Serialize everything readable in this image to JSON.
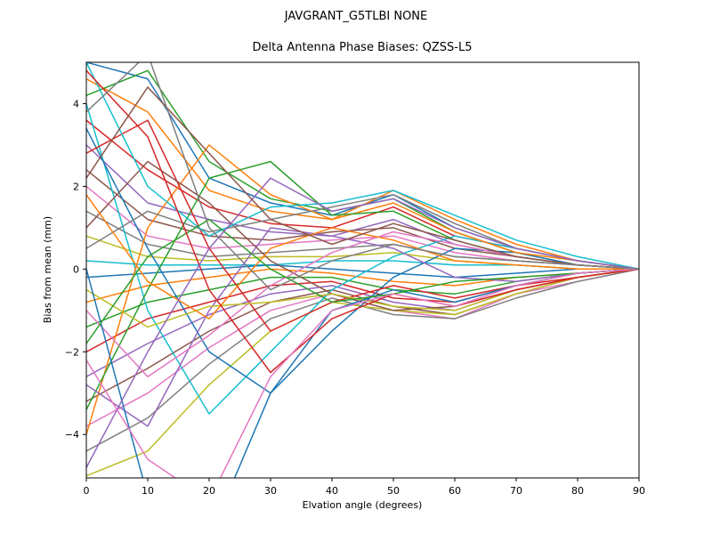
{
  "figure": {
    "suptitle": "JAVGRANT_G5TLBI NONE",
    "axes_title": "Delta Antenna Phase Biases: QZSS-L5"
  },
  "chart_data": {
    "type": "line",
    "suptitle": "JAVGRANT_G5TLBI NONE",
    "title": "Delta Antenna Phase Biases: QZSS-L5",
    "xlabel": "Elvation angle (degrees)",
    "ylabel": "Bias from mean (mm)",
    "xlim": [
      0,
      90
    ],
    "ylim": [
      -5.05,
      5.0
    ],
    "xticks": [
      0,
      10,
      20,
      30,
      40,
      50,
      60,
      70,
      80,
      90
    ],
    "xtick_labels": [
      "0",
      "10",
      "20",
      "30",
      "40",
      "50",
      "60",
      "70",
      "80",
      "90"
    ],
    "yticks": [
      -4,
      -2,
      0,
      2,
      4
    ],
    "ytick_labels": [
      "−4",
      "−2",
      "0",
      "2",
      "4"
    ],
    "grid": false,
    "legend": "none",
    "line_width": 1.5,
    "palette": [
      "#1f77b4",
      "#ff7f0e",
      "#2ca02c",
      "#d62728",
      "#9467bd",
      "#8c564b",
      "#e377c2",
      "#7f7f7f",
      "#bcbd22",
      "#17becf"
    ],
    "x": [
      0,
      10,
      20,
      30,
      40,
      50,
      60,
      70,
      80,
      90
    ],
    "series": [
      [
        5.0,
        4.6,
        2.2,
        1.6,
        1.3,
        1.8,
        1.0,
        0.5,
        0.2,
        0.0
      ],
      [
        4.6,
        3.8,
        1.9,
        1.4,
        1.2,
        1.9,
        1.2,
        0.6,
        0.2,
        0.0
      ],
      [
        4.2,
        4.8,
        2.6,
        1.7,
        1.4,
        1.7,
        0.9,
        0.4,
        0.1,
        0.0
      ],
      [
        3.6,
        2.4,
        1.5,
        1.1,
        1.0,
        1.5,
        0.8,
        0.5,
        0.2,
        0.0
      ],
      [
        3.0,
        1.6,
        1.2,
        0.9,
        0.8,
        1.2,
        0.6,
        0.3,
        0.1,
        0.0
      ],
      [
        2.4,
        1.2,
        0.8,
        0.7,
        0.9,
        1.0,
        0.5,
        0.3,
        0.1,
        0.0
      ],
      [
        2.0,
        0.8,
        0.5,
        0.6,
        0.7,
        0.8,
        0.4,
        0.2,
        0.1,
        0.0
      ],
      [
        1.4,
        0.6,
        0.3,
        0.4,
        0.5,
        0.6,
        0.3,
        0.2,
        0.1,
        0.0
      ],
      [
        0.8,
        0.3,
        0.2,
        0.3,
        0.3,
        0.4,
        0.2,
        0.1,
        0.0,
        0.0
      ],
      [
        0.2,
        0.1,
        0.1,
        0.1,
        0.2,
        0.2,
        0.1,
        0.1,
        0.0,
        0.0
      ],
      [
        -0.2,
        -0.1,
        0.0,
        0.1,
        0.0,
        -0.1,
        -0.2,
        -0.1,
        0.0,
        0.0
      ],
      [
        -0.8,
        -0.4,
        -0.2,
        0.0,
        -0.1,
        -0.3,
        -0.4,
        -0.2,
        -0.1,
        0.0
      ],
      [
        -1.4,
        -0.8,
        -0.5,
        -0.2,
        -0.2,
        -0.5,
        -0.6,
        -0.3,
        -0.1,
        0.0
      ],
      [
        -2.0,
        -1.2,
        -0.8,
        -0.4,
        -0.3,
        -0.7,
        -0.8,
        -0.4,
        -0.2,
        0.0
      ],
      [
        -2.6,
        -1.8,
        -1.1,
        -0.6,
        -0.4,
        -0.8,
        -1.0,
        -0.5,
        -0.2,
        0.0
      ],
      [
        -3.2,
        -2.4,
        -1.5,
        -0.8,
        -0.5,
        -0.9,
        -1.1,
        -0.6,
        -0.2,
        0.0
      ],
      [
        -3.8,
        -3.0,
        -1.9,
        -1.0,
        -0.6,
        -1.0,
        -1.2,
        -0.6,
        -0.3,
        0.0
      ],
      [
        -4.4,
        -3.6,
        -2.3,
        -1.2,
        -0.7,
        -1.1,
        -1.2,
        -0.7,
        -0.3,
        0.0
      ],
      [
        -5.0,
        -4.4,
        -2.8,
        -1.5,
        -0.8,
        -1.0,
        -1.1,
        -0.6,
        -0.2,
        0.0
      ],
      [
        4.0,
        -1.0,
        -3.5,
        -2.0,
        -0.5,
        0.3,
        0.8,
        0.5,
        0.2,
        0.0
      ],
      [
        3.4,
        0.5,
        -2.0,
        -3.0,
        -1.5,
        -0.2,
        0.5,
        0.4,
        0.1,
        0.0
      ],
      [
        -4.0,
        1.0,
        3.0,
        1.8,
        1.2,
        1.6,
        0.9,
        0.4,
        0.2,
        0.0
      ],
      [
        -3.4,
        -0.5,
        2.2,
        2.6,
        1.3,
        1.4,
        0.7,
        0.3,
        0.1,
        0.0
      ],
      [
        2.8,
        3.6,
        0.5,
        -1.5,
        -0.8,
        -0.4,
        -0.7,
        -0.4,
        -0.1,
        0.0
      ],
      [
        -2.8,
        -3.8,
        -1.0,
        1.0,
        0.8,
        0.5,
        -0.2,
        -0.3,
        -0.1,
        0.0
      ],
      [
        1.0,
        2.6,
        1.6,
        0.2,
        -0.6,
        -1.0,
        -0.9,
        -0.5,
        -0.2,
        0.0
      ],
      [
        -1.0,
        -2.6,
        -1.6,
        -0.4,
        0.4,
        0.9,
        0.6,
        0.3,
        0.1,
        0.0
      ],
      [
        0.5,
        1.4,
        0.9,
        1.2,
        1.5,
        1.8,
        1.1,
        0.5,
        0.2,
        0.0
      ],
      [
        -0.5,
        -1.4,
        -0.9,
        -0.8,
        -0.6,
        -0.9,
        -1.0,
        -0.5,
        -0.2,
        0.0
      ],
      [
        5.0,
        2.0,
        0.8,
        1.5,
        1.6,
        1.9,
        1.3,
        0.7,
        0.3,
        0.0
      ],
      [
        0.0,
        -5.5,
        -6.5,
        -3.0,
        -1.0,
        -0.5,
        -0.8,
        -0.4,
        -0.1,
        0.0
      ],
      [
        1.8,
        -0.3,
        -1.2,
        0.5,
        1.0,
        0.7,
        0.2,
        0.1,
        0.0,
        0.0
      ],
      [
        -1.8,
        0.3,
        1.2,
        0.0,
        -0.8,
        -0.6,
        -0.3,
        -0.2,
        -0.1,
        0.0
      ],
      [
        4.8,
        3.2,
        -0.5,
        -2.5,
        -1.2,
        -0.6,
        -0.9,
        -0.5,
        -0.2,
        0.0
      ],
      [
        -4.8,
        -2.0,
        0.5,
        2.2,
        1.4,
        1.7,
        1.0,
        0.5,
        0.2,
        0.0
      ],
      [
        2.2,
        4.4,
        2.8,
        1.2,
        0.6,
        1.1,
        0.7,
        0.3,
        0.1,
        0.0
      ],
      [
        -2.2,
        -4.6,
        -5.6,
        -2.6,
        -1.0,
        -0.6,
        -0.9,
        -0.4,
        -0.1,
        0.0
      ],
      [
        3.8,
        5.2,
        1.0,
        -0.5,
        0.2,
        0.6,
        0.3,
        0.2,
        0.1,
        0.0
      ]
    ]
  }
}
